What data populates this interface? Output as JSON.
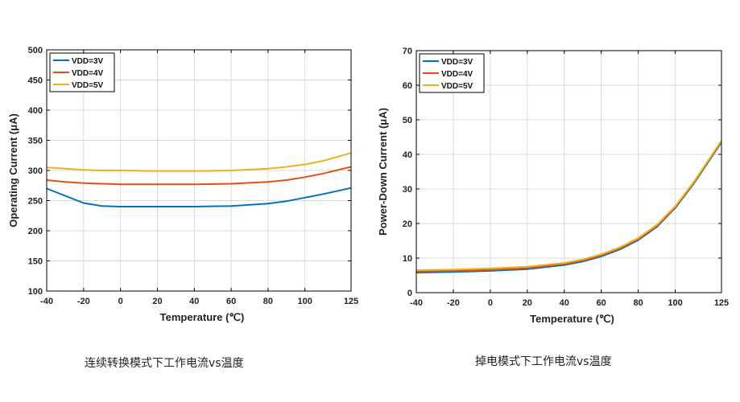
{
  "colors": {
    "s1": "#0072BD",
    "s2": "#D95319",
    "s3": "#EDB120",
    "grid": "#d9d9d9",
    "axis": "#000000"
  },
  "captions": [
    "连续转换模式下工作电流vs温度",
    "掉电模式下工作电流vs温度"
  ],
  "chart_data": [
    {
      "type": "line",
      "xlabel": "Temperature (℃)",
      "ylabel": "Operating Current (μA)",
      "xlim": [
        -40,
        125
      ],
      "ylim": [
        100,
        500
      ],
      "xticks": [
        -40,
        -20,
        0,
        20,
        40,
        60,
        80,
        100,
        125
      ],
      "yticks": [
        100,
        150,
        200,
        250,
        300,
        350,
        400,
        450,
        500
      ],
      "grid": true,
      "legend": "top-left",
      "x": [
        -40,
        -30,
        -20,
        -10,
        0,
        20,
        40,
        60,
        80,
        90,
        100,
        110,
        125
      ],
      "series": [
        {
          "name": "VDD=3V",
          "values": [
            270,
            258,
            246,
            241,
            240,
            240,
            240,
            241,
            245,
            249,
            255,
            261,
            271
          ]
        },
        {
          "name": "VDD=4V",
          "values": [
            284,
            281,
            279,
            278,
            277,
            277,
            277,
            278,
            281,
            284,
            289,
            295,
            306
          ]
        },
        {
          "name": "VDD=5V",
          "values": [
            305,
            303,
            301,
            300,
            300,
            299,
            299,
            300,
            303,
            306,
            310,
            316,
            329
          ]
        }
      ]
    },
    {
      "type": "line",
      "xlabel": "Temperature (℃)",
      "ylabel": "Power-Down Current (μA)",
      "xlim": [
        -40,
        125
      ],
      "ylim": [
        0,
        70
      ],
      "xticks": [
        -40,
        -20,
        0,
        20,
        40,
        60,
        80,
        100,
        125
      ],
      "yticks": [
        0,
        10,
        20,
        30,
        40,
        50,
        60,
        70
      ],
      "grid": true,
      "legend": "top-left",
      "x": [
        -40,
        -20,
        0,
        20,
        40,
        50,
        60,
        70,
        80,
        90,
        100,
        110,
        125
      ],
      "series": [
        {
          "name": "VDD=3V",
          "values": [
            5.8,
            6.0,
            6.3,
            6.8,
            8.0,
            9.0,
            10.5,
            12.5,
            15.2,
            19.0,
            24.5,
            31.5,
            43.5
          ]
        },
        {
          "name": "VDD=4V",
          "values": [
            6.1,
            6.3,
            6.6,
            7.1,
            8.3,
            9.3,
            10.8,
            12.8,
            15.5,
            19.3,
            24.8,
            31.8,
            43.8
          ]
        },
        {
          "name": "VDD=5V",
          "values": [
            6.5,
            6.7,
            7.0,
            7.5,
            8.6,
            9.6,
            11.1,
            13.1,
            15.8,
            19.6,
            25.0,
            32.0,
            44.0
          ]
        }
      ]
    }
  ]
}
